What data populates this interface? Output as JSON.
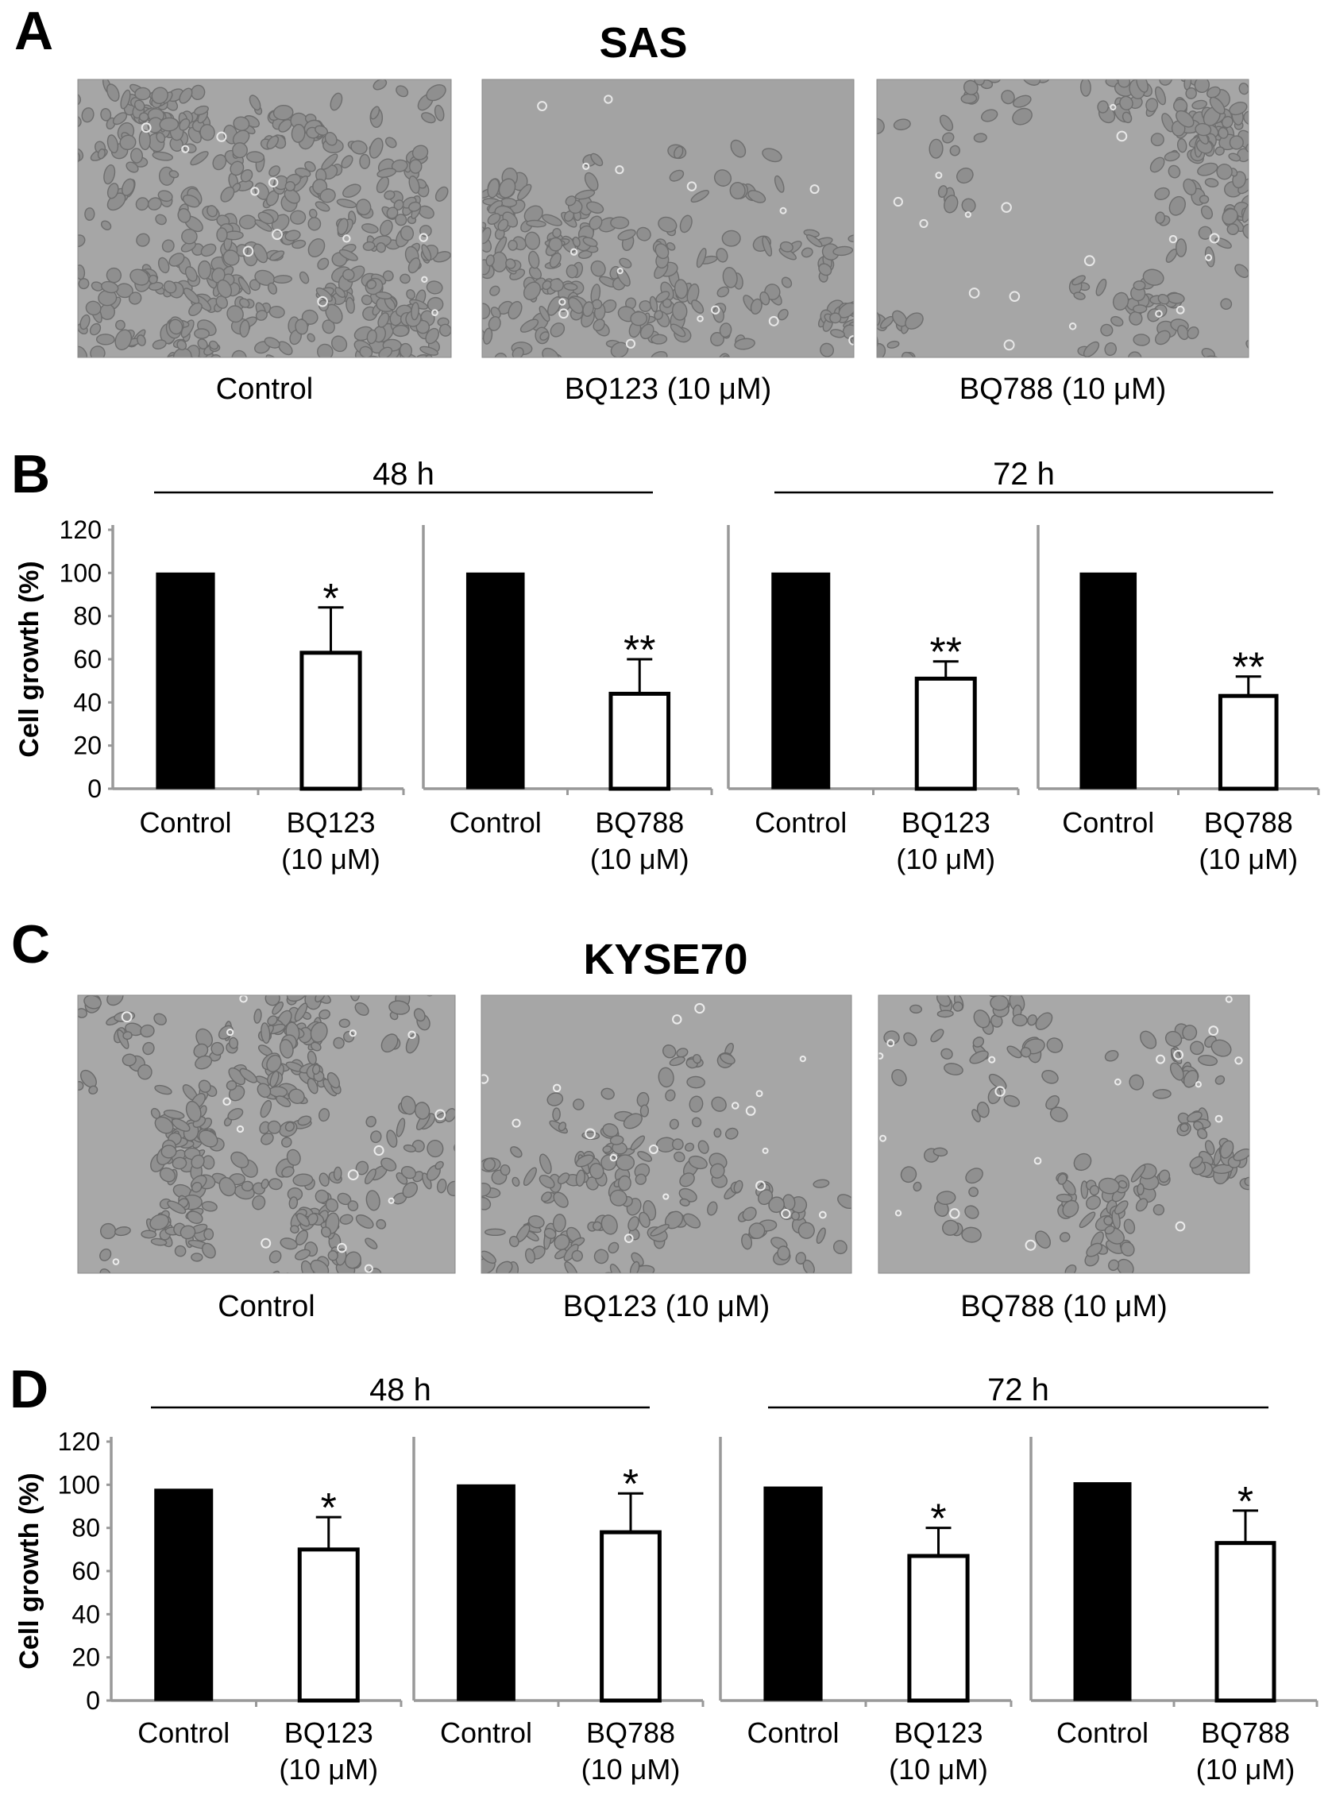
{
  "panels": {
    "A": {
      "letter": "A",
      "title": "SAS"
    },
    "B": {
      "letter": "B"
    },
    "C": {
      "letter": "C",
      "title": "KYSE70"
    },
    "D": {
      "letter": "D"
    }
  },
  "micrographs": {
    "A": [
      {
        "caption": "Control",
        "density": 0.95,
        "palette": {
          "bg": "#a6a6a6",
          "cell": "#8f8f8f",
          "edge": "#6e6e6e",
          "halo": "#e8e8e8"
        }
      },
      {
        "caption": "BQ123 (10 μM)",
        "density": 0.45,
        "palette": {
          "bg": "#a3a3a3",
          "cell": "#8f8f8f",
          "edge": "#6e6e6e",
          "halo": "#e8e8e8"
        }
      },
      {
        "caption": "BQ788 (10 μM)",
        "density": 0.4,
        "palette": {
          "bg": "#a6a6a6",
          "cell": "#8f8f8f",
          "edge": "#6e6e6e",
          "halo": "#e8e8e8"
        }
      }
    ],
    "C": [
      {
        "caption": "Control",
        "density": 0.6,
        "palette": {
          "bg": "#a8a8a8",
          "cell": "#909090",
          "edge": "#6a6a6a",
          "halo": "#ececec"
        }
      },
      {
        "caption": "BQ123 (10 μM)",
        "density": 0.28,
        "palette": {
          "bg": "#a6a6a6",
          "cell": "#909090",
          "edge": "#6a6a6a",
          "halo": "#ececec"
        }
      },
      {
        "caption": "BQ788 (10 μM)",
        "density": 0.24,
        "palette": {
          "bg": "#a8a8a8",
          "cell": "#909090",
          "edge": "#6a6a6a",
          "halo": "#ececec"
        }
      }
    ]
  },
  "axis": {
    "ylabel": "Cell growth (%)",
    "ticks": [
      "0",
      "20",
      "40",
      "60",
      "80",
      "100",
      "120"
    ]
  },
  "time_labels": {
    "t48": "48 h",
    "t72": "72 h"
  },
  "colors": {
    "control_fill": "#000000",
    "treatment_fill": "#ffffff",
    "axis": "#999999",
    "outline": "#000000"
  },
  "chart_data": [
    {
      "type": "bar",
      "panel": "B",
      "group": "48 h",
      "categories": [
        "Control",
        "BQ123\n(10 μM)"
      ],
      "values": [
        100,
        63
      ],
      "errors": [
        0,
        21
      ],
      "significance": [
        "",
        "*"
      ],
      "ylim": [
        0,
        120
      ],
      "ylabel": "Cell growth (%)"
    },
    {
      "type": "bar",
      "panel": "B",
      "group": "48 h",
      "categories": [
        "Control",
        "BQ788\n(10 μM)"
      ],
      "values": [
        100,
        44
      ],
      "errors": [
        0,
        16
      ],
      "significance": [
        "",
        "**"
      ],
      "ylim": [
        0,
        120
      ]
    },
    {
      "type": "bar",
      "panel": "B",
      "group": "72 h",
      "categories": [
        "Control",
        "BQ123\n(10 μM)"
      ],
      "values": [
        100,
        51
      ],
      "errors": [
        0,
        8
      ],
      "significance": [
        "",
        "**"
      ],
      "ylim": [
        0,
        120
      ]
    },
    {
      "type": "bar",
      "panel": "B",
      "group": "72 h",
      "categories": [
        "Control",
        "BQ788\n(10 μM)"
      ],
      "values": [
        100,
        43
      ],
      "errors": [
        0,
        9
      ],
      "significance": [
        "",
        "**"
      ],
      "ylim": [
        0,
        120
      ]
    },
    {
      "type": "bar",
      "panel": "D",
      "group": "48 h",
      "categories": [
        "Control",
        "BQ123\n(10 μM)"
      ],
      "values": [
        98,
        70
      ],
      "errors": [
        0,
        15
      ],
      "significance": [
        "",
        "*"
      ],
      "ylim": [
        0,
        120
      ],
      "ylabel": "Cell growth (%)"
    },
    {
      "type": "bar",
      "panel": "D",
      "group": "48 h",
      "categories": [
        "Control",
        "BQ788\n(10 μM)"
      ],
      "values": [
        100,
        78
      ],
      "errors": [
        0,
        18
      ],
      "significance": [
        "",
        "*"
      ],
      "ylim": [
        0,
        120
      ]
    },
    {
      "type": "bar",
      "panel": "D",
      "group": "72 h",
      "categories": [
        "Control",
        "BQ123\n(10 μM)"
      ],
      "values": [
        99,
        67
      ],
      "errors": [
        0,
        13
      ],
      "significance": [
        "",
        "*"
      ],
      "ylim": [
        0,
        120
      ]
    },
    {
      "type": "bar",
      "panel": "D",
      "group": "72 h",
      "categories": [
        "Control",
        "BQ788\n(10 μM)"
      ],
      "values": [
        101,
        73
      ],
      "errors": [
        0,
        15
      ],
      "significance": [
        "",
        "*"
      ],
      "ylim": [
        0,
        120
      ]
    }
  ]
}
